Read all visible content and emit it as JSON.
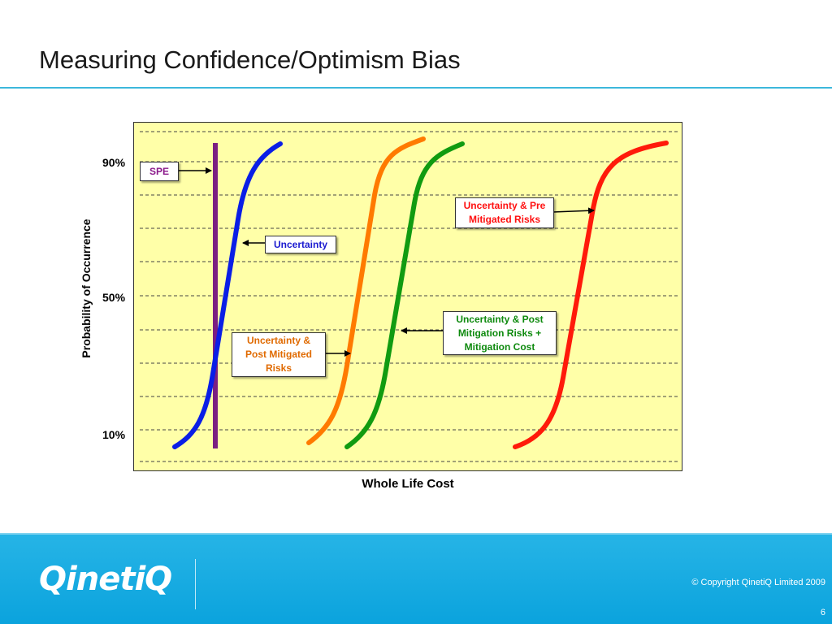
{
  "slide": {
    "title": "Measuring Confidence/Optimism Bias",
    "page_number": "6",
    "copyright": "© Copyright QinetiQ Limited 2009",
    "logo_text": "QinetiQ"
  },
  "colors": {
    "accent": "#3cb8dc",
    "footer": "#0ba3dd",
    "plot_background": "#ffffa8"
  },
  "chart_data": {
    "type": "line",
    "xlabel": "Whole Life Cost",
    "ylabel": "Probability of Occurrence",
    "yticks": [
      "90%",
      "50%",
      "10%"
    ],
    "grid": "dashed horizontal",
    "series": [
      {
        "name": "SPE",
        "color": "#7b1f82"
      },
      {
        "name": "Uncertainty",
        "color": "#0a1ee6"
      },
      {
        "name": "Uncertainty & Post Mitigated Risks",
        "color": "#ff7a00"
      },
      {
        "name": "Uncertainty & Post Mitigation Risks + Mitigation Cost",
        "color": "#119b11"
      },
      {
        "name": "Uncertainty & Pre Mitigated Risks",
        "color": "#ff1a0a"
      }
    ]
  },
  "callouts": {
    "spe": {
      "text": "SPE",
      "color": "#8b1a8b"
    },
    "uncertainty": {
      "text": "Uncertainty",
      "color": "#1a1ad0"
    },
    "post_mitigated": {
      "line1": "Uncertainty &",
      "line2": "Post Mitigated",
      "line3": "Risks",
      "color": "#e06a00"
    },
    "post_mitigation_cost": {
      "line1": "Uncertainty & Post",
      "line2": "Mitigation Risks +",
      "line3": "Mitigation Cost",
      "color": "#0e8a0e"
    },
    "pre_mitigated": {
      "line1": "Uncertainty & Pre",
      "line2": "Mitigated Risks",
      "color": "#ff1010"
    }
  }
}
